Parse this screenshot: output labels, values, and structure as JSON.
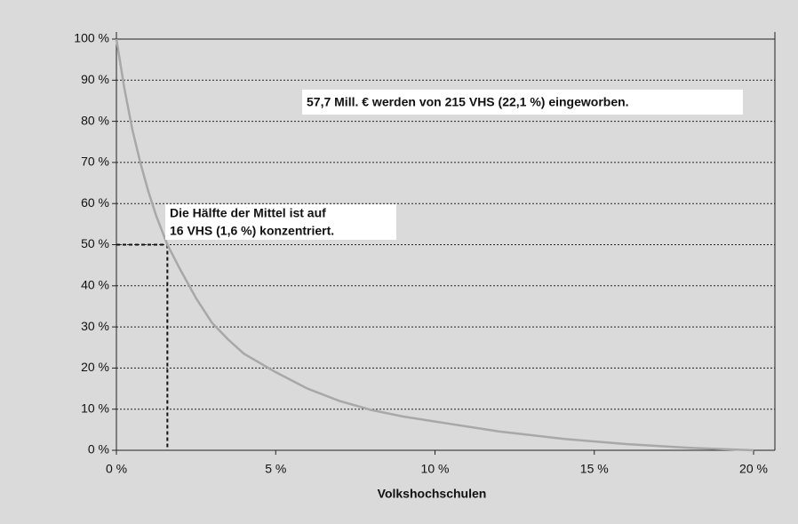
{
  "chart_data": {
    "type": "line",
    "x_label": "Volkshochschulen",
    "x": [
      0,
      0.25,
      0.5,
      0.75,
      1,
      1.25,
      1.6,
      2,
      2.5,
      3,
      3.5,
      4,
      5,
      6,
      7,
      8,
      9,
      10,
      12,
      14,
      16,
      18,
      20
    ],
    "series": [
      {
        "color": "#a8a8a8",
        "values": [
          100,
          88,
          78,
          70,
          63,
          57,
          50,
          44,
          37,
          31,
          27,
          23.5,
          19,
          15,
          12,
          9.8,
          8.2,
          7,
          4.6,
          2.8,
          1.5,
          0.6,
          0
        ]
      }
    ],
    "xlim": [
      0,
      20.7
    ],
    "ylim": [
      0,
      100
    ],
    "xticks": [
      {
        "value": 0,
        "label": "0 %"
      },
      {
        "value": 5,
        "label": "5 %"
      },
      {
        "value": 10,
        "label": "10 %"
      },
      {
        "value": 15,
        "label": "15 %"
      },
      {
        "value": 20,
        "label": "20 %"
      }
    ],
    "yticks": [
      {
        "value": 0,
        "label": "0 %"
      },
      {
        "value": 10,
        "label": "10 %"
      },
      {
        "value": 20,
        "label": "20 %"
      },
      {
        "value": 30,
        "label": "30 %"
      },
      {
        "value": 40,
        "label": "40 %"
      },
      {
        "value": 50,
        "label": "50 %"
      },
      {
        "value": 60,
        "label": "60 %"
      },
      {
        "value": 70,
        "label": "70 %"
      },
      {
        "value": 80,
        "label": "80 %"
      },
      {
        "value": 90,
        "label": "90 %"
      },
      {
        "value": 100,
        "label": "100 %"
      }
    ],
    "grid": true,
    "reference": {
      "x": 1.6,
      "y": 50
    },
    "annotations": [
      {
        "lines": [
          "57,7 Mill. € werden von 215 VHS (22,1 %) eingeworben."
        ]
      },
      {
        "lines": [
          "Die Hälfte der Mittel ist auf",
          "16 VHS (1,6 %) konzentriert."
        ]
      }
    ]
  }
}
